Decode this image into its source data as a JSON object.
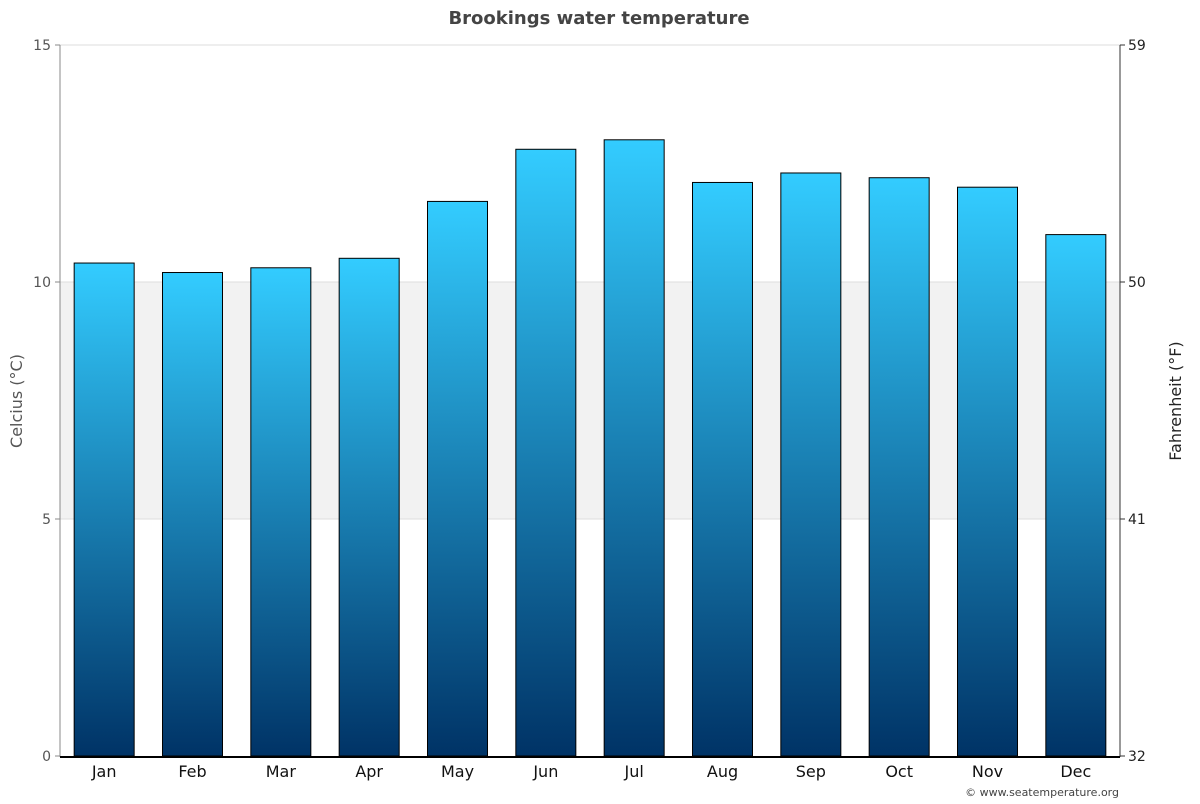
{
  "chart_data": {
    "type": "bar",
    "title": "Brookings water temperature",
    "categories": [
      "Jan",
      "Feb",
      "Mar",
      "Apr",
      "May",
      "Jun",
      "Jul",
      "Aug",
      "Sep",
      "Oct",
      "Nov",
      "Dec"
    ],
    "values": [
      10.4,
      10.2,
      10.3,
      10.5,
      11.7,
      12.8,
      13.0,
      12.1,
      12.3,
      12.2,
      12.0,
      11.0
    ],
    "ylabel": "Celcius (°C)",
    "ylabel_right": "Fahrenheit (°F)",
    "ylim": [
      0,
      15
    ],
    "yticks": [
      "0",
      "5",
      "10",
      "15"
    ],
    "yticks_right": [
      "32",
      "41",
      "50",
      "59"
    ],
    "grid": true,
    "colors": {
      "bar_top": "#33ccff",
      "bar_bottom": "#003366",
      "band": "#f2f2f2"
    }
  },
  "credit": "© www.seatemperature.org"
}
